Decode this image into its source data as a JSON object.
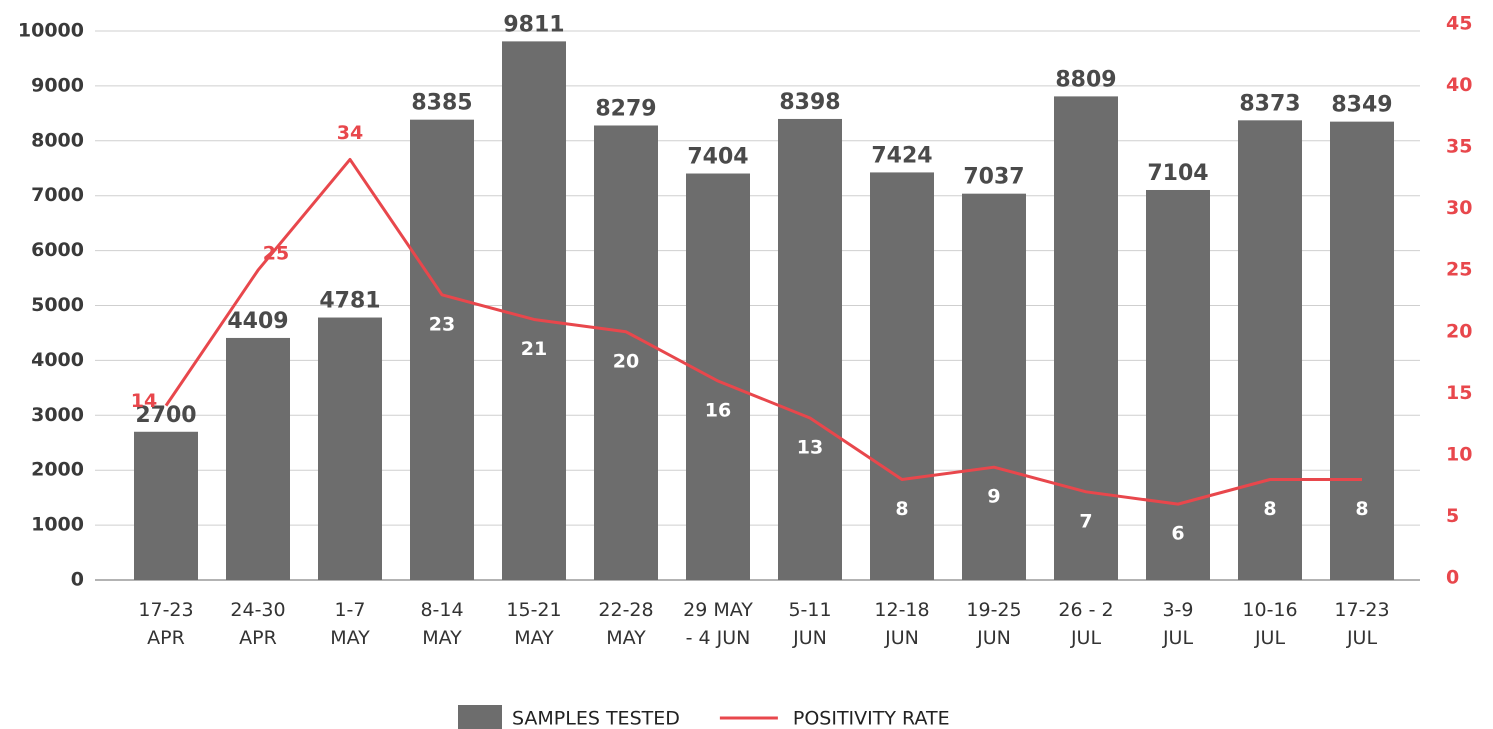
{
  "chart_data": {
    "type": "bar",
    "categories": [
      [
        "17-23",
        "APR"
      ],
      [
        "24-30",
        "APR"
      ],
      [
        "1-7",
        "MAY"
      ],
      [
        "8-14",
        "MAY"
      ],
      [
        "15-21",
        "MAY"
      ],
      [
        "22-28",
        "MAY"
      ],
      [
        "29 MAY",
        "- 4 JUN"
      ],
      [
        "5-11",
        "JUN"
      ],
      [
        "12-18",
        "JUN"
      ],
      [
        "19-25",
        "JUN"
      ],
      [
        "26 - 2",
        "JUL"
      ],
      [
        "3-9",
        "JUL"
      ],
      [
        "10-16",
        "JUL"
      ],
      [
        "17-23",
        "JUL"
      ]
    ],
    "series": [
      {
        "name": "SAMPLES TESTED",
        "type": "bar",
        "color": "#6d6d6d",
        "values": [
          2700,
          4409,
          4781,
          8385,
          9811,
          8279,
          7404,
          8398,
          7424,
          7037,
          8809,
          7104,
          8373,
          8349
        ]
      },
      {
        "name": "POSITIVITY RATE",
        "type": "line",
        "axis": "y2",
        "color": "#e8474c",
        "values": [
          14,
          25,
          34,
          23,
          21,
          20,
          16,
          13,
          8,
          9,
          7,
          6,
          8,
          8
        ]
      }
    ],
    "ylim": [
      0,
      10000
    ],
    "yticks": [
      0,
      1000,
      2000,
      3000,
      4000,
      5000,
      6000,
      7000,
      8000,
      9000,
      10000
    ],
    "y2lim": [
      0,
      45
    ],
    "y2ticks": [
      0,
      5,
      10,
      15,
      20,
      25,
      30,
      35,
      40,
      45
    ],
    "grid": true,
    "legend": "bottom"
  }
}
